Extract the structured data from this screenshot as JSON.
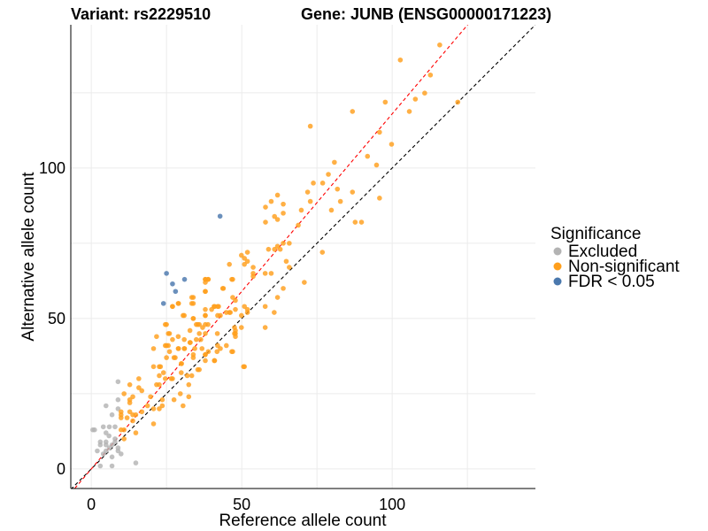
{
  "chart_data": {
    "type": "scatter",
    "title_left": "Variant: rs2229510",
    "title_right": "Gene: JUNB (ENSG00000171223)",
    "xlabel": "Reference allele count",
    "ylabel": "Alternative allele count",
    "xlim": [
      -6.8,
      147.6
    ],
    "ylim": [
      -6.5,
      147.6
    ],
    "xticks": [
      0,
      50,
      100
    ],
    "yticks": [
      0,
      50,
      100
    ],
    "minor_grid": [
      25,
      75,
      125
    ],
    "grid": true,
    "legend": {
      "title": "Significance",
      "placement": "right",
      "items": [
        {
          "label": "Excluded",
          "color": "#b3b3b3"
        },
        {
          "label": "Non-significant",
          "color": "#ff9f1c"
        },
        {
          "label": "FDR < 0.05",
          "color": "#4a78ad"
        }
      ]
    },
    "reference_lines": [
      {
        "name": "identity",
        "slope": 1.0,
        "intercept": 0,
        "color": "#000000",
        "style": "dashed"
      },
      {
        "name": "fit",
        "slope": 1.18,
        "intercept": 0,
        "color": "#ff0000",
        "style": "dashed"
      }
    ],
    "series": [
      {
        "name": "Excluded",
        "color": "#b3b3b3",
        "points": [
          [
            8.9,
            29
          ],
          [
            8.9,
            23
          ],
          [
            4.9,
            21
          ],
          [
            8.9,
            20
          ],
          [
            6.9,
            18
          ],
          [
            1.1,
            13
          ],
          [
            4,
            14
          ],
          [
            6,
            14
          ],
          [
            7.9,
            14
          ],
          [
            4.9,
            12
          ],
          [
            5.9,
            11
          ],
          [
            7.9,
            10
          ],
          [
            3,
            9
          ],
          [
            4.9,
            9
          ],
          [
            6.9,
            8
          ],
          [
            7.9,
            9
          ],
          [
            3,
            8
          ],
          [
            4.9,
            8
          ],
          [
            2,
            6
          ],
          [
            4.9,
            6
          ],
          [
            6,
            7
          ],
          [
            8.9,
            7
          ],
          [
            8.9,
            6
          ],
          [
            9.9,
            5
          ],
          [
            6.9,
            4
          ],
          [
            4,
            5
          ],
          [
            3,
            1
          ],
          [
            6.9,
            1
          ],
          [
            14.8,
            2
          ],
          [
            0.5,
            13
          ]
        ]
      },
      {
        "name": "Non-significant",
        "color": "#ff9f1c",
        "points": [
          [
            115.8,
            140.9
          ],
          [
            102.7,
            135.9
          ],
          [
            112.7,
            130.9
          ],
          [
            110.8,
            124.9
          ],
          [
            107.7,
            122.9
          ],
          [
            121.8,
            121.9
          ],
          [
            97.7,
            121.9
          ],
          [
            105.7,
            118.8
          ],
          [
            86.8,
            118.8
          ],
          [
            72.8,
            113.9
          ],
          [
            95.8,
            111.9
          ],
          [
            99.8,
            107.9
          ],
          [
            91.8,
            103.9
          ],
          [
            80.8,
            101.9
          ],
          [
            94.8,
            101
          ],
          [
            78.8,
            97.9
          ],
          [
            73.8,
            95
          ],
          [
            76.9,
            95
          ],
          [
            71.9,
            92
          ],
          [
            81.8,
            93
          ],
          [
            86.8,
            92
          ],
          [
            72.8,
            88.9
          ],
          [
            82.8,
            88.9
          ],
          [
            95.8,
            90
          ],
          [
            61.9,
            91
          ],
          [
            59.8,
            88.9
          ],
          [
            63.8,
            88
          ],
          [
            69.8,
            86
          ],
          [
            79.8,
            86
          ],
          [
            60.9,
            83.9
          ],
          [
            61.9,
            82.9
          ],
          [
            63.8,
            85
          ],
          [
            57.9,
            87
          ],
          [
            57.9,
            82
          ],
          [
            68.8,
            81
          ],
          [
            87.7,
            82
          ],
          [
            89.8,
            82
          ],
          [
            58.9,
            73
          ],
          [
            60.9,
            73
          ],
          [
            62.8,
            73
          ],
          [
            61.9,
            74
          ],
          [
            63.8,
            75
          ],
          [
            65.8,
            75
          ],
          [
            76.8,
            72
          ],
          [
            49.9,
            71
          ],
          [
            50.9,
            70
          ],
          [
            51.9,
            72
          ],
          [
            51.9,
            69
          ],
          [
            50.9,
            68
          ],
          [
            45.9,
            68
          ],
          [
            53.8,
            67
          ],
          [
            53.8,
            65
          ],
          [
            53.8,
            64
          ],
          [
            57.8,
            65
          ],
          [
            59.8,
            65
          ],
          [
            64.8,
            69
          ],
          [
            65.8,
            67
          ],
          [
            70.8,
            62
          ],
          [
            63.8,
            60
          ],
          [
            61.9,
            57
          ],
          [
            57.8,
            54
          ],
          [
            60.8,
            52
          ],
          [
            57.8,
            47
          ],
          [
            50.9,
            34
          ],
          [
            49.9,
            47
          ],
          [
            47,
            57
          ],
          [
            47.9,
            56
          ],
          [
            47,
            63
          ],
          [
            43.9,
            60
          ],
          [
            50.9,
            54
          ],
          [
            51.9,
            53
          ],
          [
            49.9,
            51
          ],
          [
            51.9,
            52
          ],
          [
            45.9,
            52
          ],
          [
            44.9,
            52
          ],
          [
            47.9,
            53
          ],
          [
            42,
            51
          ],
          [
            42.9,
            51
          ],
          [
            41,
            54
          ],
          [
            42,
            54
          ],
          [
            40,
            53
          ],
          [
            37.9,
            53
          ],
          [
            37.9,
            51
          ],
          [
            37.9,
            59
          ],
          [
            37.9,
            63
          ],
          [
            38.9,
            63
          ],
          [
            37.9,
            62
          ],
          [
            33.9,
            57
          ],
          [
            33.9,
            55
          ],
          [
            28.9,
            55
          ],
          [
            27,
            54
          ],
          [
            30.9,
            51
          ],
          [
            33.9,
            50
          ],
          [
            34.9,
            48
          ],
          [
            35.9,
            48
          ],
          [
            37.9,
            48
          ],
          [
            37,
            47
          ],
          [
            35.9,
            45
          ],
          [
            37.9,
            45
          ],
          [
            41.9,
            45
          ],
          [
            47.9,
            46
          ],
          [
            47.9,
            45
          ],
          [
            47.9,
            44
          ],
          [
            44.9,
            41
          ],
          [
            42,
            41
          ],
          [
            47,
            39
          ],
          [
            42.9,
            40
          ],
          [
            38.9,
            39
          ],
          [
            40.9,
            36
          ],
          [
            37.9,
            38
          ],
          [
            33.9,
            38
          ],
          [
            33.9,
            37
          ],
          [
            35.9,
            33
          ],
          [
            32.8,
            46
          ],
          [
            32.8,
            42
          ],
          [
            34.9,
            43
          ],
          [
            36.8,
            40
          ],
          [
            30.9,
            43
          ],
          [
            28.9,
            44
          ],
          [
            27,
            43
          ],
          [
            28.9,
            40
          ],
          [
            30.9,
            40
          ],
          [
            25,
            41
          ],
          [
            26,
            39
          ],
          [
            25,
            37
          ],
          [
            27.9,
            37
          ],
          [
            29.9,
            35
          ],
          [
            29.9,
            32
          ],
          [
            31.9,
            31
          ],
          [
            26,
            45
          ],
          [
            25,
            48
          ],
          [
            23,
            34
          ],
          [
            24,
            32
          ],
          [
            27,
            30
          ],
          [
            10.9,
            25
          ],
          [
            12.8,
            28
          ],
          [
            15.8,
            30
          ],
          [
            15.8,
            27
          ],
          [
            16.8,
            26
          ],
          [
            13.8,
            24
          ],
          [
            12.8,
            23
          ],
          [
            12.8,
            22
          ],
          [
            9.9,
            19
          ],
          [
            9.9,
            18
          ],
          [
            9.9,
            17
          ],
          [
            11.9,
            17
          ],
          [
            12.8,
            19
          ],
          [
            13.8,
            18
          ],
          [
            14.8,
            18
          ],
          [
            16.8,
            19
          ],
          [
            13.8,
            16
          ],
          [
            9.9,
            13
          ],
          [
            10.9,
            13
          ],
          [
            14.8,
            12
          ],
          [
            10.9,
            10
          ],
          [
            18.7,
            21
          ],
          [
            19.7,
            24
          ],
          [
            20.7,
            20
          ],
          [
            22.6,
            20
          ],
          [
            23.6,
            21
          ],
          [
            20.7,
            15
          ],
          [
            21.7,
            28
          ],
          [
            22.6,
            28
          ],
          [
            23.6,
            23
          ],
          [
            22.6,
            31
          ],
          [
            24.6,
            30
          ],
          [
            20.7,
            34
          ],
          [
            22.6,
            34
          ],
          [
            21.7,
            44
          ],
          [
            20.7,
            40
          ],
          [
            24.6,
            48
          ],
          [
            24.6,
            41
          ],
          [
            25.6,
            45
          ],
          [
            27.5,
            37
          ],
          [
            26.6,
            30
          ],
          [
            27.5,
            23
          ],
          [
            30.5,
            21
          ],
          [
            29.6,
            25
          ],
          [
            32.4,
            24
          ],
          [
            32.4,
            28
          ],
          [
            30,
            35
          ],
          [
            35.4,
            33
          ],
          [
            33.4,
            31
          ],
          [
            31,
            40
          ],
          [
            29,
            40
          ],
          [
            32.9,
            42
          ],
          [
            34.4,
            40
          ],
          [
            37.9,
            38
          ],
          [
            41,
            36
          ],
          [
            41.8,
            39
          ],
          [
            46.7,
            39
          ],
          [
            50.6,
            34
          ],
          [
            37.9,
            36
          ],
          [
            36.4,
            43
          ],
          [
            35.4,
            48
          ],
          [
            38.8,
            48
          ],
          [
            30.5,
            51
          ],
          [
            33.9,
            50
          ],
          [
            37.9,
            51
          ],
          [
            40.8,
            54
          ],
          [
            42.3,
            54
          ],
          [
            46.2,
            52
          ],
          [
            47.6,
            47
          ],
          [
            47.6,
            45
          ],
          [
            33.4,
            57
          ],
          [
            33.4,
            55
          ],
          [
            37.9,
            59
          ],
          [
            37.9,
            63
          ],
          [
            38.8,
            63
          ],
          [
            46.7,
            63
          ],
          [
            43.7,
            60
          ],
          [
            29,
            55
          ],
          [
            27,
            54
          ],
          [
            25.6,
            41
          ]
        ]
      },
      {
        "name": "FDR < 0.05",
        "color": "#4a78ad",
        "points": [
          [
            42.8,
            84
          ],
          [
            25,
            65
          ],
          [
            31,
            63
          ],
          [
            27,
            61.5
          ],
          [
            28,
            59
          ],
          [
            24,
            55
          ]
        ]
      }
    ]
  }
}
